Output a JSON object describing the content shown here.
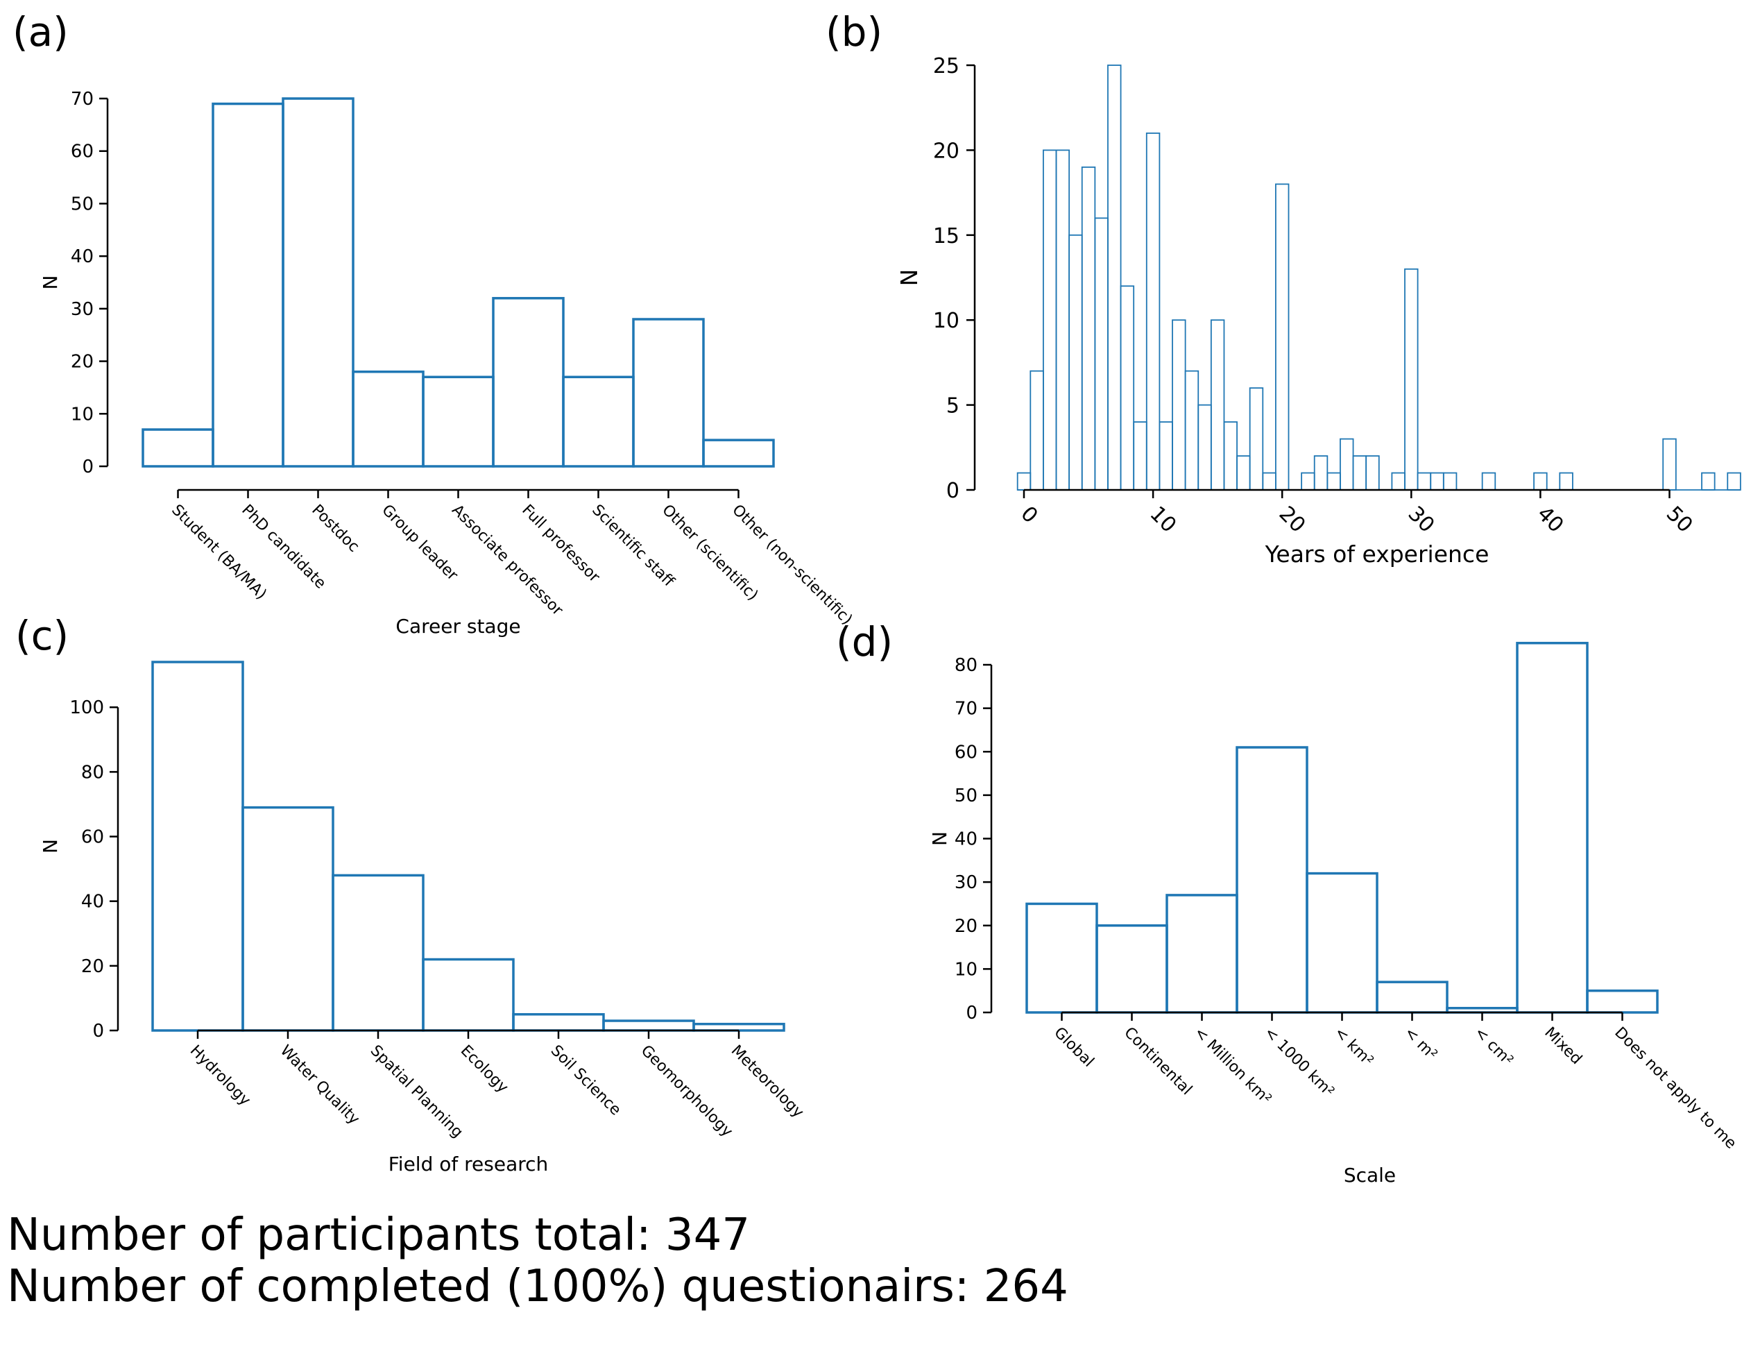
{
  "panel_labels": [
    "(a)",
    "(b)",
    "(c)",
    "(d)"
  ],
  "footer": {
    "line1": "Number of participants total: 347",
    "line2": "Number of completed (100%) questionairs: 264"
  },
  "colors": {
    "bar_edge": "#1f77b4",
    "axis": "#000000"
  },
  "chart_data": [
    {
      "id": "a",
      "type": "bar",
      "title": "",
      "xlabel": "Career stage",
      "ylabel": "N",
      "categories": [
        "Student (BA/MA)",
        "PhD candidate",
        "Postdoc",
        "Group leader",
        "Associate professor",
        "Full professor",
        "Scientific staff",
        "Other (scientific)",
        "Other (non-scientific)"
      ],
      "values": [
        7,
        69,
        70,
        18,
        17,
        32,
        17,
        28,
        5
      ],
      "ylim": [
        0,
        70
      ],
      "yticks": [
        0,
        10,
        20,
        30,
        40,
        50,
        60,
        70
      ],
      "grid": false,
      "style": "step-outline"
    },
    {
      "id": "b",
      "type": "bar",
      "title": "",
      "xlabel": "Years of experience",
      "ylabel": "N",
      "bin_width": 1,
      "bin_starts": [
        -0.5,
        0.5,
        1.5,
        2.5,
        3.5,
        4.5,
        5.5,
        6.5,
        7.5,
        8.5,
        9.5,
        10.5,
        11.5,
        12.5,
        13.5,
        14.5,
        15.5,
        16.5,
        17.5,
        18.5,
        19.5,
        20.5,
        21.5,
        22.5,
        23.5,
        24.5,
        25.5,
        26.5,
        27.5,
        28.5,
        29.5,
        30.5,
        31.5,
        32.5,
        33.5,
        34.5,
        35.5,
        36.5,
        37.5,
        38.5,
        39.5,
        40.5,
        41.5,
        42.5,
        43.5,
        44.5,
        45.5,
        46.5,
        47.5,
        48.5,
        49.5,
        50.5,
        51.5,
        52.5,
        53.5,
        54.5
      ],
      "values": [
        1,
        7,
        20,
        20,
        15,
        19,
        16,
        25,
        12,
        4,
        21,
        4,
        10,
        7,
        5,
        10,
        4,
        2,
        6,
        1,
        18,
        0,
        1,
        2,
        1,
        3,
        2,
        2,
        0,
        1,
        13,
        1,
        1,
        1,
        0,
        0,
        1,
        0,
        0,
        0,
        1,
        0,
        1,
        0,
        0,
        0,
        0,
        0,
        0,
        0,
        3,
        0,
        0,
        1,
        0,
        1
      ],
      "xticks": [
        0,
        10,
        20,
        30,
        40,
        50
      ],
      "yticks": [
        0,
        5,
        10,
        15,
        20,
        25
      ],
      "ylim": [
        0,
        25
      ],
      "grid": false,
      "style": "thin-outline"
    },
    {
      "id": "c",
      "type": "bar",
      "title": "",
      "xlabel": "Field of research",
      "ylabel": "N",
      "categories": [
        "Hydrology",
        "Water Quality",
        "Spatial Planning",
        "Ecology",
        "Soil Science",
        "Geomorphology",
        "Meteorology"
      ],
      "values": [
        114,
        69,
        48,
        22,
        5,
        3,
        2
      ],
      "ylim": [
        0,
        114
      ],
      "yticks": [
        0,
        20,
        40,
        60,
        80,
        100
      ],
      "grid": false,
      "style": "step-outline"
    },
    {
      "id": "d",
      "type": "bar",
      "title": "",
      "xlabel": "Scale",
      "ylabel": "N",
      "categories": [
        "Global",
        "Continental",
        "< Million km²",
        "< 1000 km²",
        "< km²",
        "< m²",
        "< cm²",
        "Mixed",
        "Does not apply to me"
      ],
      "values": [
        25,
        20,
        27,
        61,
        32,
        7,
        1,
        85,
        5
      ],
      "ylim": [
        0,
        80
      ],
      "yticks": [
        0,
        10,
        20,
        30,
        40,
        50,
        60,
        70,
        80
      ],
      "grid": false,
      "style": "step-outline"
    }
  ]
}
